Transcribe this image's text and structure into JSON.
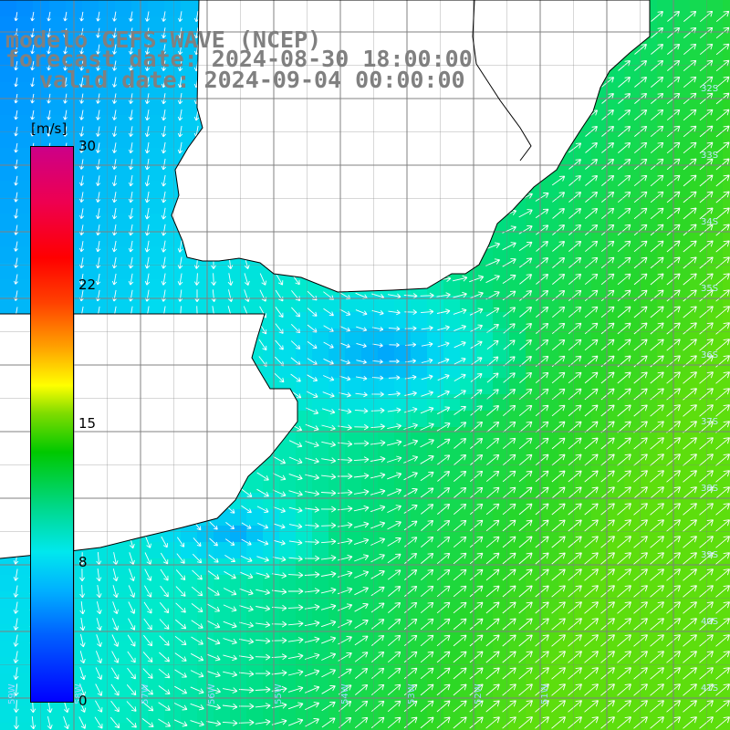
{
  "title": {
    "line1": "modelo GEFS-WAVE (NCEP)",
    "line2": "forecast date: 2024-08-30 18:00:00",
    "line3": "valid date: 2024-09-04 00:00:00"
  },
  "colorbar": {
    "unit": "[m/s]",
    "ticks": [
      "30",
      "22",
      "15",
      "8",
      "0"
    ],
    "tick_values": [
      30,
      22,
      15,
      8,
      0
    ],
    "colors": [
      "#0000ff",
      "#0060ff",
      "#00b0ff",
      "#00e8ee",
      "#00d88a",
      "#00c800",
      "#80dc00",
      "#ffff00",
      "#ffa000",
      "#ff4000",
      "#ff0000",
      "#cc0088"
    ]
  },
  "latitude_labels": [
    "32S",
    "33S",
    "34S",
    "35S",
    "36S",
    "37S",
    "38S",
    "39S",
    "40S",
    "41S"
  ],
  "longitude_labels": [
    "59W",
    "58W",
    "57W",
    "56W",
    "55W",
    "54W",
    "53W",
    "52W",
    "51W"
  ],
  "map": {
    "region": "Rio de la Plata / southern Brazil coast",
    "wind_speed_range_ms": [
      0,
      13
    ],
    "grid_step_deg": 0.25,
    "land_color": "#ffffff",
    "coast_color": "#000000",
    "grid_color": "#808080",
    "arrow_color": "#ffffff"
  }
}
